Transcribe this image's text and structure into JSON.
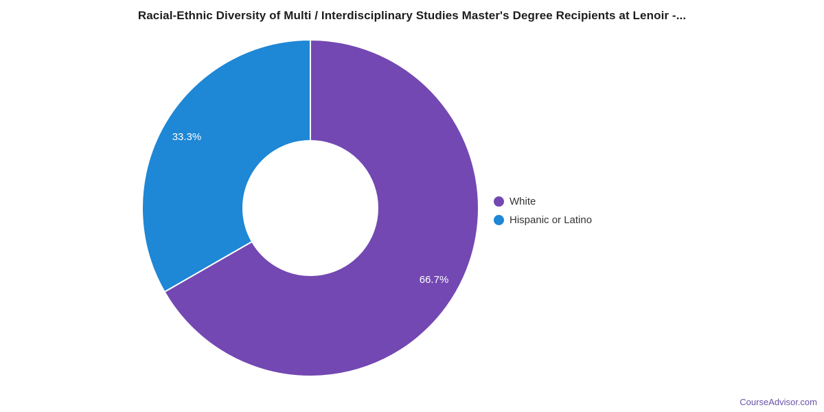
{
  "page": {
    "background": "#ffffff",
    "watermark": "CourseAdvisor.com",
    "watermark_color": "#6A52A8"
  },
  "colors": {
    "title_text": "#1d1d1d",
    "legend_text": "#333333",
    "slice_label_text": "#ffffff",
    "slice_border": "#ffffff"
  },
  "chart_data": {
    "type": "pie",
    "subtype": "donut",
    "title": "Racial-Ethnic Diversity of Multi / Interdisciplinary Studies Master's Degree Recipients at Lenoir -...",
    "start_angle_deg": 0,
    "direction": "clockwise",
    "legend_position": "right",
    "inner_radius_ratio": 0.4,
    "data_labels": "percent, inside slices",
    "slices": [
      {
        "label": "White",
        "value_pct": 66.7,
        "data_label": "66.7%",
        "color": "#7348B2"
      },
      {
        "label": "Hispanic or Latino",
        "value_pct": 33.3,
        "data_label": "33.3%",
        "color": "#1E87D6"
      }
    ]
  }
}
